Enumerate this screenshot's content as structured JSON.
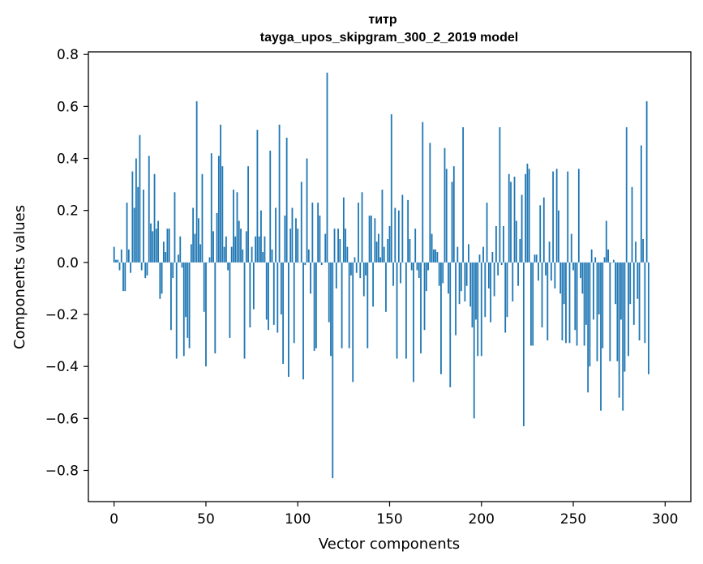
{
  "chart_data": {
    "type": "bar",
    "title": "титр",
    "subtitle": "tayga_upos_skipgram_300_2_2019 model",
    "xlabel": "Vector components",
    "ylabel": "Components values",
    "xlim": [
      -14,
      314
    ],
    "ylim": [
      -0.92,
      0.81
    ],
    "x_ticks": [
      0,
      50,
      100,
      150,
      200,
      250,
      300
    ],
    "y_ticks": [
      -0.8,
      -0.6,
      -0.4,
      -0.2,
      0.0,
      0.2,
      0.4,
      0.6,
      0.8
    ],
    "x_tick_labels": [
      "0",
      "50",
      "100",
      "150",
      "200",
      "250",
      "300"
    ],
    "y_tick_labels": [
      "−0.8",
      "−0.6",
      "−0.4",
      "−0.2",
      "0.0",
      "0.2",
      "0.4",
      "0.6",
      "0.8"
    ],
    "bar_color": "#1f77b4",
    "series": [
      {
        "name": "components",
        "x_start": 0,
        "values": [
          0.06,
          0.01,
          0.01,
          -0.03,
          0.05,
          -0.11,
          -0.11,
          0.23,
          0.05,
          -0.04,
          0.35,
          0.21,
          0.4,
          0.29,
          0.49,
          -0.03,
          0.28,
          -0.06,
          -0.05,
          0.41,
          0.15,
          0.12,
          0.34,
          0.13,
          0.16,
          -0.14,
          -0.12,
          0.08,
          0.04,
          0.13,
          0.13,
          -0.26,
          -0.06,
          0.27,
          -0.37,
          0.03,
          0.1,
          -0.02,
          -0.36,
          -0.21,
          -0.29,
          -0.33,
          0.07,
          0.21,
          0.11,
          0.62,
          0.17,
          0.07,
          0.34,
          -0.19,
          -0.4,
          0.0,
          0.02,
          0.42,
          0.12,
          -0.35,
          0.19,
          0.41,
          0.53,
          0.37,
          0.06,
          0.1,
          -0.03,
          -0.29,
          0.06,
          0.28,
          0.1,
          0.27,
          0.16,
          0.13,
          0.05,
          -0.37,
          0.12,
          0.37,
          -0.25,
          0.06,
          -0.18,
          0.1,
          0.51,
          0.1,
          0.2,
          0.04,
          0.1,
          -0.22,
          -0.26,
          0.43,
          0.05,
          -0.24,
          0.21,
          -0.27,
          0.53,
          -0.2,
          -0.39,
          0.18,
          0.48,
          -0.44,
          0.13,
          0.21,
          -0.31,
          0.17,
          0.13,
          0.0,
          0.31,
          -0.45,
          -0.01,
          0.4,
          0.05,
          -0.12,
          0.23,
          -0.34,
          -0.33,
          0.23,
          0.18,
          -0.01,
          0.0,
          0.11,
          0.73,
          -0.23,
          -0.36,
          -0.83,
          0.13,
          -0.1,
          0.13,
          0.09,
          -0.33,
          0.25,
          0.13,
          0.06,
          -0.33,
          -0.05,
          -0.46,
          0.02,
          -0.04,
          0.23,
          -0.06,
          0.27,
          -0.13,
          -0.05,
          -0.33,
          0.18,
          0.18,
          -0.17,
          0.17,
          0.08,
          0.11,
          0.02,
          0.28,
          0.06,
          -0.19,
          0.09,
          0.14,
          0.57,
          -0.09,
          0.21,
          -0.37,
          0.2,
          -0.08,
          0.26,
          0.0,
          -0.37,
          0.24,
          0.09,
          -0.03,
          -0.46,
          0.13,
          -0.03,
          -0.06,
          -0.35,
          0.54,
          -0.26,
          -0.11,
          -0.03,
          0.46,
          0.11,
          0.05,
          0.05,
          0.04,
          -0.09,
          -0.43,
          -0.08,
          0.44,
          0.36,
          -0.12,
          -0.48,
          0.31,
          0.37,
          -0.28,
          0.06,
          -0.16,
          -0.11,
          0.52,
          -0.15,
          -0.09,
          0.07,
          -0.17,
          -0.25,
          -0.6,
          -0.22,
          -0.36,
          0.03,
          -0.36,
          0.06,
          -0.21,
          0.23,
          -0.1,
          -0.23,
          0.04,
          -0.13,
          0.14,
          -0.05,
          0.52,
          -0.01,
          0.14,
          -0.27,
          -0.21,
          0.34,
          0.31,
          -0.15,
          0.33,
          0.16,
          -0.09,
          0.09,
          0.26,
          -0.63,
          0.34,
          0.38,
          0.36,
          -0.32,
          -0.32,
          0.03,
          0.03,
          -0.07,
          0.22,
          -0.25,
          0.25,
          -0.05,
          -0.3,
          0.08,
          -0.07,
          0.35,
          -0.1,
          0.36,
          0.2,
          -0.12,
          -0.3,
          -0.16,
          -0.31,
          0.35,
          -0.31,
          0.11,
          -0.03,
          -0.26,
          -0.32,
          0.36,
          -0.06,
          -0.12,
          -0.32,
          -0.24,
          -0.5,
          -0.4,
          0.05,
          -0.22,
          0.02,
          -0.38,
          -0.2,
          -0.57,
          -0.33,
          0.02,
          0.16,
          0.05,
          -0.38,
          0.0,
          0.01,
          -0.16,
          -0.38,
          -0.52,
          -0.22,
          -0.57,
          -0.42,
          0.52,
          -0.36,
          -0.16,
          0.29,
          -0.24,
          0.08,
          -0.14,
          -0.3,
          0.45,
          0.09,
          -0.31,
          0.62,
          -0.43
        ]
      }
    ]
  }
}
